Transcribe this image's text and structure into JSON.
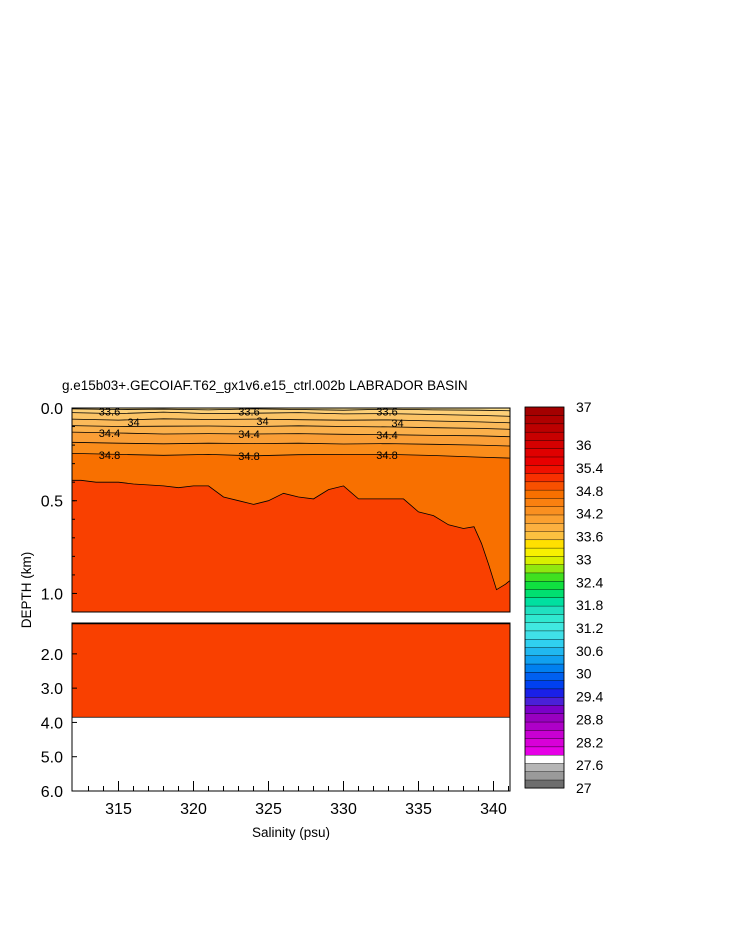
{
  "chart_data": {
    "type": "area",
    "title": "g.e15b03+.GECOIAF.T62_gx1v6.e15_ctrl.002b LABRADOR BASIN",
    "xlabel": "Salinity (psu)",
    "ylabel": "DEPTH (km)",
    "xlim": [
      311.9,
      341.1
    ],
    "x_ticks": [
      "315",
      "320",
      "325",
      "330",
      "335",
      "340"
    ],
    "x_tick_values": [
      315,
      320,
      325,
      330,
      335,
      340
    ],
    "upper_panel": {
      "ylim": [
        0.0,
        1.1
      ],
      "y_ticks": [
        "0.0",
        "0.5",
        "1.0"
      ],
      "y_tick_values": [
        0.0,
        0.5,
        1.0
      ]
    },
    "lower_panel": {
      "ylim": [
        1.1,
        6.0
      ],
      "y_ticks": [
        "2.0",
        "3.0",
        "4.0",
        "5.0",
        "6.0"
      ],
      "y_tick_values": [
        2.0,
        3.0,
        4.0,
        5.0,
        6.0
      ],
      "bottom_depth": 3.85
    },
    "contour_labels": [
      {
        "text": "33.6",
        "x": 314.4,
        "depth": 0.02
      },
      {
        "text": "34",
        "x": 316.0,
        "depth": 0.075
      },
      {
        "text": "34.4",
        "x": 314.4,
        "depth": 0.135
      },
      {
        "text": "34.8",
        "x": 314.4,
        "depth": 0.253
      },
      {
        "text": "33.6",
        "x": 323.7,
        "depth": 0.02
      },
      {
        "text": "34",
        "x": 324.6,
        "depth": 0.07
      },
      {
        "text": "34.4",
        "x": 323.7,
        "depth": 0.14
      },
      {
        "text": "34.8",
        "x": 323.7,
        "depth": 0.26
      },
      {
        "text": "33.6",
        "x": 332.9,
        "depth": 0.02
      },
      {
        "text": "34",
        "x": 333.6,
        "depth": 0.08
      },
      {
        "text": "34.4",
        "x": 332.9,
        "depth": 0.145
      },
      {
        "text": "34.8",
        "x": 332.9,
        "depth": 0.253
      }
    ],
    "contour_lines_upper": [
      {
        "level": 33.6,
        "x": [
          311.9,
          315,
          318,
          321,
          324,
          327,
          330,
          333,
          336,
          339,
          341.1
        ],
        "depth": [
          0.005,
          0.008,
          0.006,
          0.01,
          0.005,
          0.008,
          0.012,
          0.006,
          0.01,
          0.012,
          0.015
        ]
      },
      {
        "level": 33.8,
        "x": [
          311.9,
          315,
          318,
          321,
          324,
          327,
          330,
          333,
          336,
          339,
          341.1
        ],
        "depth": [
          0.025,
          0.03,
          0.022,
          0.03,
          0.028,
          0.025,
          0.032,
          0.03,
          0.035,
          0.04,
          0.045
        ]
      },
      {
        "level": 34.0,
        "x": [
          311.9,
          315,
          318,
          321,
          324,
          327,
          330,
          333,
          336,
          339,
          341.1
        ],
        "depth": [
          0.06,
          0.065,
          0.058,
          0.062,
          0.06,
          0.063,
          0.066,
          0.064,
          0.07,
          0.075,
          0.08
        ]
      },
      {
        "level": 34.2,
        "x": [
          311.9,
          315,
          318,
          321,
          324,
          327,
          330,
          333,
          336,
          339,
          341.1
        ],
        "depth": [
          0.095,
          0.1,
          0.098,
          0.097,
          0.1,
          0.096,
          0.1,
          0.102,
          0.106,
          0.11,
          0.115
        ]
      },
      {
        "level": 34.4,
        "x": [
          311.9,
          315,
          318,
          321,
          324,
          327,
          330,
          333,
          336,
          339,
          341.1
        ],
        "depth": [
          0.13,
          0.135,
          0.14,
          0.138,
          0.14,
          0.138,
          0.142,
          0.144,
          0.148,
          0.15,
          0.155
        ]
      },
      {
        "level": 34.6,
        "x": [
          311.9,
          315,
          318,
          321,
          324,
          327,
          330,
          333,
          336,
          339,
          341.1
        ],
        "depth": [
          0.185,
          0.19,
          0.193,
          0.19,
          0.192,
          0.19,
          0.194,
          0.192,
          0.196,
          0.2,
          0.205
        ]
      },
      {
        "level": 34.8,
        "x": [
          311.9,
          315,
          318,
          321,
          324,
          327,
          330,
          333,
          336,
          339,
          341.1
        ],
        "depth": [
          0.245,
          0.25,
          0.255,
          0.25,
          0.258,
          0.252,
          0.25,
          0.25,
          0.256,
          0.265,
          0.27
        ]
      },
      {
        "level": 34.9,
        "x": [
          311.9,
          312.5,
          313.5,
          315,
          316,
          318,
          319,
          320,
          321,
          322,
          323,
          324,
          325,
          326,
          327,
          328,
          329,
          330,
          331,
          332,
          333,
          334,
          335,
          336,
          337,
          338,
          338.7,
          339.2,
          339.7,
          340.2,
          340.8,
          341.1
        ],
        "depth": [
          0.39,
          0.39,
          0.4,
          0.4,
          0.41,
          0.42,
          0.43,
          0.42,
          0.42,
          0.48,
          0.5,
          0.52,
          0.5,
          0.46,
          0.48,
          0.49,
          0.44,
          0.42,
          0.49,
          0.49,
          0.49,
          0.49,
          0.56,
          0.58,
          0.63,
          0.65,
          0.64,
          0.73,
          0.85,
          0.98,
          0.95,
          0.93
        ]
      }
    ],
    "colors": {
      "deep_fill": "#f94000",
      "mid_fill": "#f87000",
      "c348": "#fa8c1a",
      "c346": "#fa9e36",
      "c344": "#fbb04b",
      "c342": "#fbba5a",
      "c340": "#fcc466",
      "c338": "#fdd078",
      "c336": "#fde090",
      "contour_line": "#000000"
    },
    "colorbar": {
      "labels": [
        "37",
        "36",
        "35.4",
        "34.8",
        "34.2",
        "33.6",
        "33",
        "32.4",
        "31.8",
        "31.2",
        "30.6",
        "30",
        "29.4",
        "28.8",
        "28.2",
        "27.6",
        "27"
      ],
      "label_values": [
        37,
        36,
        35.4,
        34.8,
        34.2,
        33.6,
        33,
        32.4,
        31.8,
        31.2,
        30.6,
        30,
        29.4,
        28.8,
        28.2,
        27.6,
        27
      ],
      "colors": [
        "#6e6e6e",
        "#9a9a9a",
        "#b6b6b6",
        "#ffffff",
        "#e600e6",
        "#d800d8",
        "#c800d2",
        "#ae00c8",
        "#9800c0",
        "#7a00c8",
        "#4a20d8",
        "#1a20e8",
        "#0040f0",
        "#0060f0",
        "#0080f0",
        "#10a0f0",
        "#20b8f0",
        "#30d0f0",
        "#40e0e8",
        "#40e8e0",
        "#30e8d0",
        "#20e0c0",
        "#00e0a0",
        "#00e070",
        "#10e040",
        "#40e020",
        "#90e810",
        "#d8f000",
        "#f8f000",
        "#ffe000",
        "#fcc040",
        "#fcb040",
        "#fba030",
        "#fa9020",
        "#fa8010",
        "#f87000",
        "#f85000",
        "#f83000",
        "#f01000",
        "#e80000",
        "#e00000",
        "#d40000",
        "#c80000",
        "#bc0000",
        "#b00000",
        "#a40000"
      ]
    }
  }
}
